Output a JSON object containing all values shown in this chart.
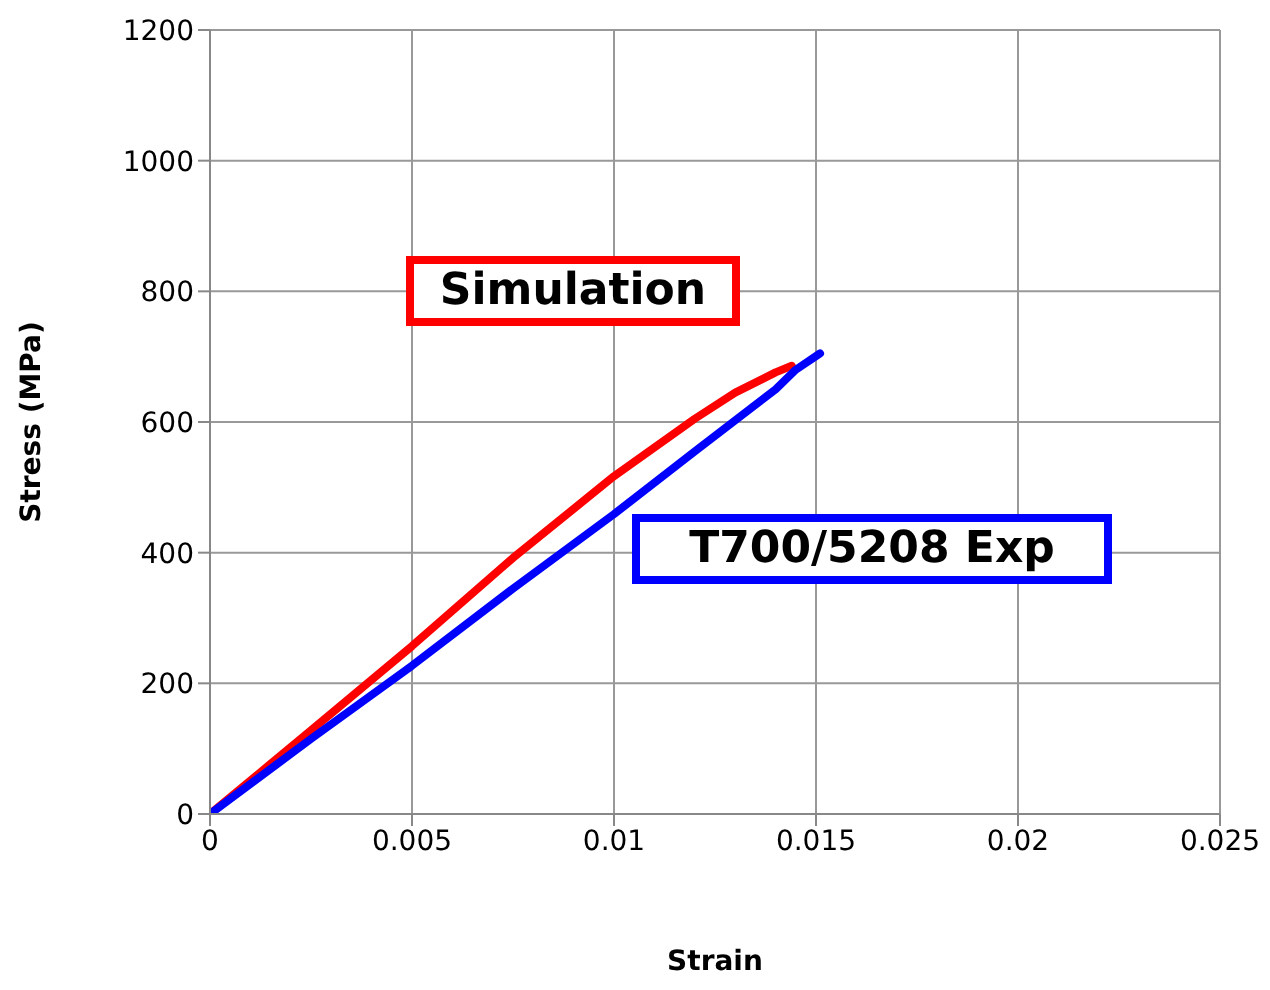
{
  "chart_data": {
    "type": "line",
    "xlabel": "Strain",
    "ylabel": "Stress (MPa)",
    "xlim": [
      0,
      0.025
    ],
    "xticks": [
      0,
      0.005,
      0.01,
      0.015,
      0.02,
      0.025
    ],
    "ylim": [
      0,
      1200
    ],
    "yticks": [
      0,
      200,
      400,
      600,
      800,
      1000,
      1200
    ],
    "grid": true,
    "legend": false,
    "marker": "none",
    "line_style": "solid",
    "series": [
      {
        "name": "Simulation",
        "color": "#ff0000",
        "x": [
          0,
          0.0025,
          0.005,
          0.0075,
          0.01,
          0.012,
          0.013,
          0.014,
          0.0144
        ],
        "values": [
          0,
          128,
          257,
          392,
          517,
          605,
          645,
          676,
          686
        ]
      },
      {
        "name": "T700/5208 Exp",
        "color": "#0000ff",
        "x": [
          0,
          0.0025,
          0.005,
          0.0075,
          0.01,
          0.012,
          0.014,
          0.0145,
          0.0151
        ],
        "values": [
          0,
          115,
          227,
          345,
          459,
          555,
          650,
          680,
          705
        ]
      }
    ]
  }
}
